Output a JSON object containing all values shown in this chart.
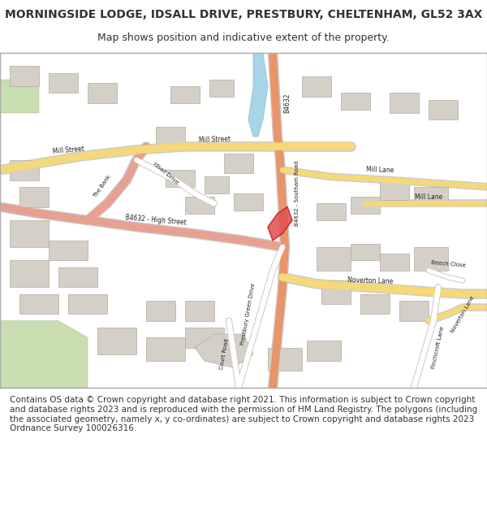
{
  "title_line1": "MORNINGSIDE LODGE, IDSALL DRIVE, PRESTBURY, CHELTENHAM, GL52 3AX",
  "title_line2": "Map shows position and indicative extent of the property.",
  "title_fontsize": 10,
  "subtitle_fontsize": 9,
  "copyright_text": "Contains OS data © Crown copyright and database right 2021. This information is subject to Crown copyright and database rights 2023 and is reproduced with the permission of HM Land Registry. The polygons (including the associated geometry, namely x, y co-ordinates) are subject to Crown copyright and database rights 2023 Ordnance Survey 100026316.",
  "copyright_fontsize": 7.5,
  "fig_width": 6.0,
  "fig_height": 6.25,
  "map_bg": "#f5f3ee",
  "road_yellow": "#f5d87a",
  "road_orange": "#e8956a",
  "road_pink": "#e8a090",
  "road_white": "#ffffff",
  "building_color": "#d4d0c8",
  "building_outline": "#b0aca0",
  "water_color": "#a8d4e8",
  "green_color": "#c8ddb0",
  "property_color": "#e05050",
  "text_color": "#333333",
  "header_bg": "#ffffff",
  "footer_bg": "#ffffff",
  "map_border": "#cccccc"
}
